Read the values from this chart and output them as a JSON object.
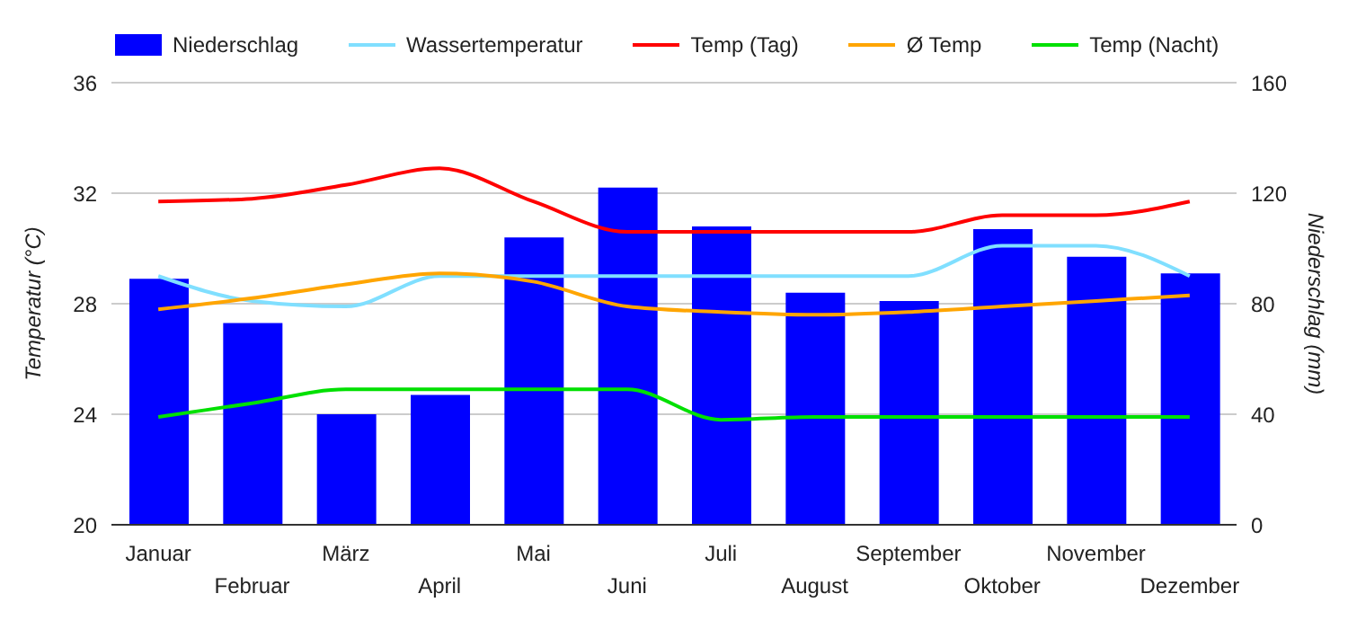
{
  "chart_data": {
    "type": "bar",
    "categories": [
      "Januar",
      "Februar",
      "März",
      "April",
      "Mai",
      "Juni",
      "Juli",
      "August",
      "September",
      "Oktober",
      "November",
      "Dezember"
    ],
    "ylabel": "Temperatur (°C)",
    "y2label": "Niederschlag (mm)",
    "ylim": [
      20,
      36
    ],
    "yticks": [
      20,
      24,
      28,
      32,
      36
    ],
    "y2lim": [
      0,
      160
    ],
    "y2ticks": [
      0,
      40,
      80,
      120,
      160
    ],
    "grid": "y",
    "legend": "top",
    "series": [
      {
        "name": "Niederschlag",
        "axis": "y2",
        "color": "#0000ff",
        "values": [
          89,
          73,
          40,
          47,
          104,
          122,
          108,
          84,
          81,
          107,
          97,
          91
        ]
      },
      {
        "name": "Wassertemperatur",
        "type": "line",
        "color": "#80dfff",
        "values": [
          29.0,
          28.1,
          27.9,
          29.0,
          29.0,
          29.0,
          29.0,
          29.0,
          29.0,
          30.1,
          30.1,
          29.0
        ]
      },
      {
        "name": "Temp (Tag)",
        "type": "line",
        "color": "#ff0000",
        "values": [
          31.7,
          31.8,
          32.3,
          32.9,
          31.7,
          30.6,
          30.6,
          30.6,
          30.6,
          31.2,
          31.2,
          31.7
        ]
      },
      {
        "name": "Ø Temp",
        "type": "line",
        "color": "#ffa500",
        "values": [
          27.8,
          28.2,
          28.7,
          29.1,
          28.8,
          27.9,
          27.7,
          27.6,
          27.7,
          27.9,
          28.1,
          28.3
        ]
      },
      {
        "name": "Temp (Nacht)",
        "type": "line",
        "color": "#00e000",
        "values": [
          23.9,
          24.4,
          24.9,
          24.9,
          24.9,
          24.9,
          23.8,
          23.9,
          23.9,
          23.9,
          23.9,
          23.9
        ]
      }
    ]
  }
}
